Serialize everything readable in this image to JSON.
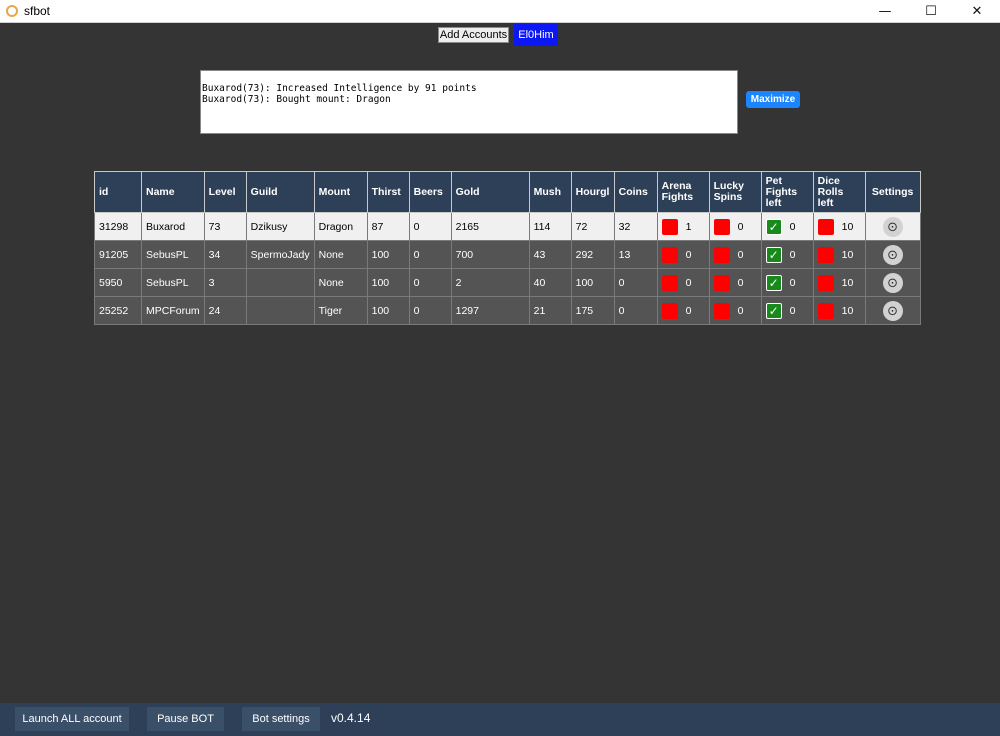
{
  "window": {
    "title": "sfbot",
    "controls": {
      "minimize": "—",
      "maximize": "☐",
      "close": "✕"
    }
  },
  "top": {
    "add_accounts_label": "Add Accounts",
    "user_label": "El0Him"
  },
  "log": {
    "lines": [
      "Buxarod(73): Increased Intelligence by 91 points",
      "Buxarod(73): Bought mount: Dragon"
    ],
    "maximize_label": "Maximize"
  },
  "table": {
    "headers": {
      "id": "id",
      "name": "Name",
      "level": "Level",
      "guild": "Guild",
      "mount": "Mount",
      "thirst": "Thirst",
      "beers": "Beers",
      "gold": "Gold",
      "mush": "Mush",
      "hourgl": "Hourgl",
      "coins": "Coins",
      "arena_1": "Arena",
      "arena_2": "Fights",
      "lucky_1": "Lucky",
      "lucky_2": "Spins",
      "pet_1": "Pet",
      "pet_2": "Fights",
      "pet_3": "left",
      "dice_1": "Dice",
      "dice_2": "Rolls",
      "dice_3": "left",
      "settings": "Settings"
    },
    "rows": [
      {
        "id": "31298",
        "name": "Buxarod",
        "level": "73",
        "guild": "Dzikusy",
        "mount": "Dragon",
        "thirst": "87",
        "beers": "0",
        "gold": "2165",
        "mush": "114",
        "hourgl": "72",
        "coins": "32",
        "arena": "1",
        "lucky": "0",
        "pet": "0",
        "dice": "10"
      },
      {
        "id": "91205",
        "name": "SebusPL",
        "level": "34",
        "guild": "SpermoJady",
        "mount": "None",
        "thirst": "100",
        "beers": "0",
        "gold": "700",
        "mush": "43",
        "hourgl": "292",
        "coins": "13",
        "arena": "0",
        "lucky": "0",
        "pet": "0",
        "dice": "10"
      },
      {
        "id": "5950",
        "name": "SebusPL",
        "level": "3",
        "guild": "",
        "mount": "None",
        "thirst": "100",
        "beers": "0",
        "gold": "2",
        "mush": "40",
        "hourgl": "100",
        "coins": "0",
        "arena": "0",
        "lucky": "0",
        "pet": "0",
        "dice": "10"
      },
      {
        "id": "25252",
        "name": "MPCForum",
        "level": "24",
        "guild": "",
        "mount": "Tiger",
        "thirst": "100",
        "beers": "0",
        "gold": "1297",
        "mush": "21",
        "hourgl": "175",
        "coins": "0",
        "arena": "0",
        "lucky": "0",
        "pet": "0",
        "dice": "10"
      }
    ],
    "check_glyph": "✓",
    "gear_glyph": "⊙"
  },
  "bottom": {
    "launch_label": "Launch ALL account",
    "pause_label": "Pause BOT",
    "settings_label": "Bot settings",
    "version": "v0.4.14"
  },
  "colors": {
    "background": "#343434",
    "header": "#2e4057",
    "status_red": "#ff0000",
    "status_green": "#178a1b",
    "user_button": "#0b17f5",
    "maximize_button": "#1a85ff"
  }
}
